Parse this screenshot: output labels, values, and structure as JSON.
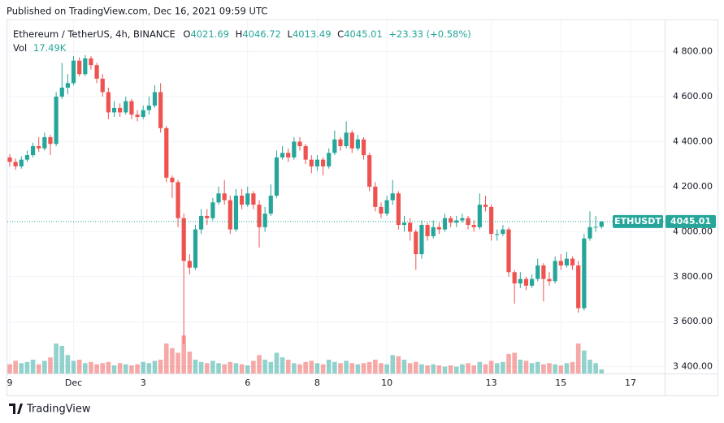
{
  "header": {
    "published": "Published on TradingView.com, Dec 16, 2021 09:59 UTC"
  },
  "footer": {
    "brand": "TradingView"
  },
  "chart_data": {
    "type": "candlestick",
    "symbol": "Ethereum / TetherUS, 4h, BINANCE",
    "ohlc_letters": [
      "O",
      "H",
      "L",
      "C"
    ],
    "change": "+23.33 (+0.58%)",
    "vol_title": "Vol",
    "vol_label": "17.49K",
    "symbol_tag": "ETHUSDT",
    "up_color": "#26a69a",
    "down_color": "#ef5350",
    "categories": [
      "9",
      null,
      null,
      null,
      null,
      null,
      null,
      null,
      null,
      null,
      null,
      "Dec",
      null,
      null,
      null,
      null,
      null,
      null,
      null,
      null,
      null,
      null,
      null,
      "3",
      null,
      null,
      null,
      null,
      null,
      null,
      null,
      null,
      null,
      null,
      null,
      null,
      null,
      null,
      null,
      null,
      null,
      "6",
      null,
      null,
      null,
      null,
      null,
      null,
      null,
      null,
      null,
      null,
      null,
      "8",
      null,
      null,
      null,
      null,
      null,
      null,
      null,
      null,
      null,
      null,
      null,
      "10",
      null,
      null,
      null,
      null,
      null,
      null,
      null,
      null,
      null,
      null,
      null,
      null,
      null,
      null,
      null,
      null,
      null,
      "13",
      null,
      null,
      null,
      null,
      null,
      null,
      null,
      null,
      null,
      null,
      null,
      "15",
      null,
      null,
      null,
      null,
      null,
      null,
      null,
      null,
      null,
      null,
      null,
      "17"
    ],
    "open": [
      4330,
      4310,
      4290,
      4320,
      4340,
      4380,
      4370,
      4420,
      4390,
      4600,
      4640,
      4660,
      4760,
      4700,
      4770,
      4740,
      4680,
      4620,
      4530,
      4550,
      4530,
      4580,
      4520,
      4510,
      4540,
      4560,
      4620,
      4460,
      4240,
      4220,
      4060,
      3870,
      3840,
      4010,
      4070,
      4060,
      4130,
      4170,
      4140,
      4010,
      4160,
      4120,
      4170,
      4120,
      4020,
      4080,
      4160,
      4330,
      4350,
      4330,
      4400,
      4380,
      4320,
      4290,
      4320,
      4290,
      4350,
      4410,
      4380,
      4440,
      4370,
      4410,
      4340,
      4200,
      4110,
      4080,
      4140,
      4170,
      4030,
      4040,
      4000,
      3900,
      4030,
      3980,
      4020,
      4010,
      4060,
      4040,
      4050,
      4060,
      4030,
      4020,
      4120,
      4110,
      3990,
      3990,
      4010,
      3820,
      3770,
      3790,
      3760,
      3790,
      3850,
      3790,
      3780,
      3870,
      3850,
      3880,
      3850,
      3660,
      3970,
      4020,
      4021.69,
      null,
      null,
      null,
      null,
      null
    ],
    "high": [
      4345,
      4325,
      4335,
      4360,
      4395,
      4420,
      4440,
      4430,
      4620,
      4750,
      4700,
      4780,
      4775,
      4785,
      4780,
      4750,
      4700,
      4640,
      4580,
      4570,
      4600,
      4590,
      4540,
      4560,
      4600,
      4650,
      4660,
      4470,
      4250,
      4230,
      4080,
      3900,
      4030,
      4100,
      4100,
      4150,
      4200,
      4230,
      4160,
      4190,
      4190,
      4200,
      4180,
      4140,
      4110,
      4210,
      4360,
      4380,
      4370,
      4420,
      4420,
      4390,
      4340,
      4340,
      4330,
      4370,
      4450,
      4420,
      4490,
      4450,
      4430,
      4420,
      4350,
      4220,
      4130,
      4160,
      4230,
      4180,
      4070,
      4060,
      4010,
      4050,
      4040,
      4050,
      4040,
      4080,
      4070,
      4070,
      4080,
      4070,
      4050,
      4170,
      4160,
      4120,
      4010,
      4030,
      4020,
      3830,
      3820,
      3800,
      3810,
      3880,
      3860,
      3820,
      3890,
      3900,
      3910,
      3890,
      3870,
      3990,
      4090,
      4070,
      4046.72,
      null,
      null,
      null,
      null,
      null
    ],
    "low": [
      4290,
      4275,
      4280,
      4310,
      4330,
      4355,
      4360,
      4340,
      4380,
      4590,
      4610,
      4650,
      4690,
      4690,
      4720,
      4660,
      4600,
      4500,
      4510,
      4510,
      4520,
      4500,
      4490,
      4500,
      4520,
      4550,
      4440,
      4220,
      4150,
      4020,
      3500,
      3810,
      3830,
      3990,
      4030,
      4050,
      4120,
      4120,
      3990,
      4000,
      4100,
      4110,
      4100,
      3930,
      4000,
      4070,
      4150,
      4320,
      4310,
      4320,
      4360,
      4300,
      4260,
      4270,
      4250,
      4280,
      4340,
      4360,
      4370,
      4350,
      4360,
      4320,
      4180,
      4090,
      4060,
      4070,
      4120,
      4010,
      4000,
      3960,
      3830,
      3880,
      3960,
      3970,
      3990,
      4000,
      4020,
      4020,
      4040,
      4010,
      4000,
      4010,
      4090,
      3960,
      3960,
      3980,
      3800,
      3680,
      3750,
      3740,
      3750,
      3780,
      3690,
      3760,
      3770,
      3830,
      3840,
      3830,
      3640,
      3650,
      3960,
      4000,
      4013.49,
      null,
      null,
      null,
      null,
      null
    ],
    "close": [
      4310,
      4290,
      4320,
      4340,
      4380,
      4370,
      4420,
      4390,
      4600,
      4640,
      4660,
      4760,
      4700,
      4770,
      4740,
      4680,
      4620,
      4530,
      4550,
      4530,
      4580,
      4520,
      4510,
      4540,
      4560,
      4620,
      4460,
      4240,
      4220,
      4060,
      3870,
      3840,
      4010,
      4070,
      4060,
      4130,
      4170,
      4140,
      4010,
      4160,
      4120,
      4170,
      4120,
      4020,
      4080,
      4160,
      4330,
      4350,
      4330,
      4400,
      4380,
      4320,
      4290,
      4320,
      4290,
      4350,
      4410,
      4380,
      4440,
      4370,
      4410,
      4340,
      4200,
      4110,
      4080,
      4140,
      4170,
      4030,
      4040,
      4000,
      3900,
      4030,
      3980,
      4020,
      4010,
      4060,
      4040,
      4050,
      4060,
      4030,
      4020,
      4120,
      4110,
      3990,
      3990,
      4010,
      3820,
      3770,
      3790,
      3760,
      3790,
      3850,
      3790,
      3780,
      3870,
      3850,
      3880,
      3850,
      3660,
      3970,
      4020,
      4021.69,
      4045.01,
      null,
      null,
      null,
      null,
      null
    ],
    "volume": [
      40000,
      55000,
      45000,
      50000,
      60000,
      40000,
      55000,
      70000,
      130000,
      120000,
      80000,
      55000,
      60000,
      45000,
      50000,
      40000,
      45000,
      50000,
      35000,
      45000,
      40000,
      35000,
      40000,
      50000,
      45000,
      55000,
      60000,
      130000,
      110000,
      90000,
      165000,
      95000,
      60000,
      50000,
      45000,
      55000,
      45000,
      40000,
      50000,
      45000,
      40000,
      35000,
      55000,
      80000,
      60000,
      50000,
      90000,
      70000,
      60000,
      45000,
      40000,
      50000,
      55000,
      45000,
      40000,
      60000,
      50000,
      45000,
      55000,
      45000,
      40000,
      45000,
      50000,
      60000,
      45000,
      40000,
      80000,
      75000,
      60000,
      45000,
      50000,
      40000,
      35000,
      40000,
      35000,
      30000,
      35000,
      30000,
      40000,
      45000,
      35000,
      50000,
      40000,
      55000,
      45000,
      50000,
      85000,
      90000,
      60000,
      55000,
      45000,
      50000,
      40000,
      45000,
      40000,
      35000,
      45000,
      50000,
      130000,
      100000,
      60000,
      45000,
      17490,
      null,
      null,
      null,
      null,
      null
    ],
    "volume_lim": [
      0,
      600000
    ],
    "ylim": [
      3370,
      4950
    ],
    "yticks": [
      {
        "value": 3400,
        "label": "3 400.00"
      },
      {
        "value": 3600,
        "label": "3 600.00"
      },
      {
        "value": 3800,
        "label": "3 800.00"
      },
      {
        "value": 4000,
        "label": "4 000.00"
      },
      {
        "value": 4200,
        "label": "4 200.00"
      },
      {
        "value": 4400,
        "label": "4 400.00"
      },
      {
        "value": 4600,
        "label": "4 600.00"
      },
      {
        "value": 4800,
        "label": "4 800.00"
      }
    ],
    "grid": true
  }
}
